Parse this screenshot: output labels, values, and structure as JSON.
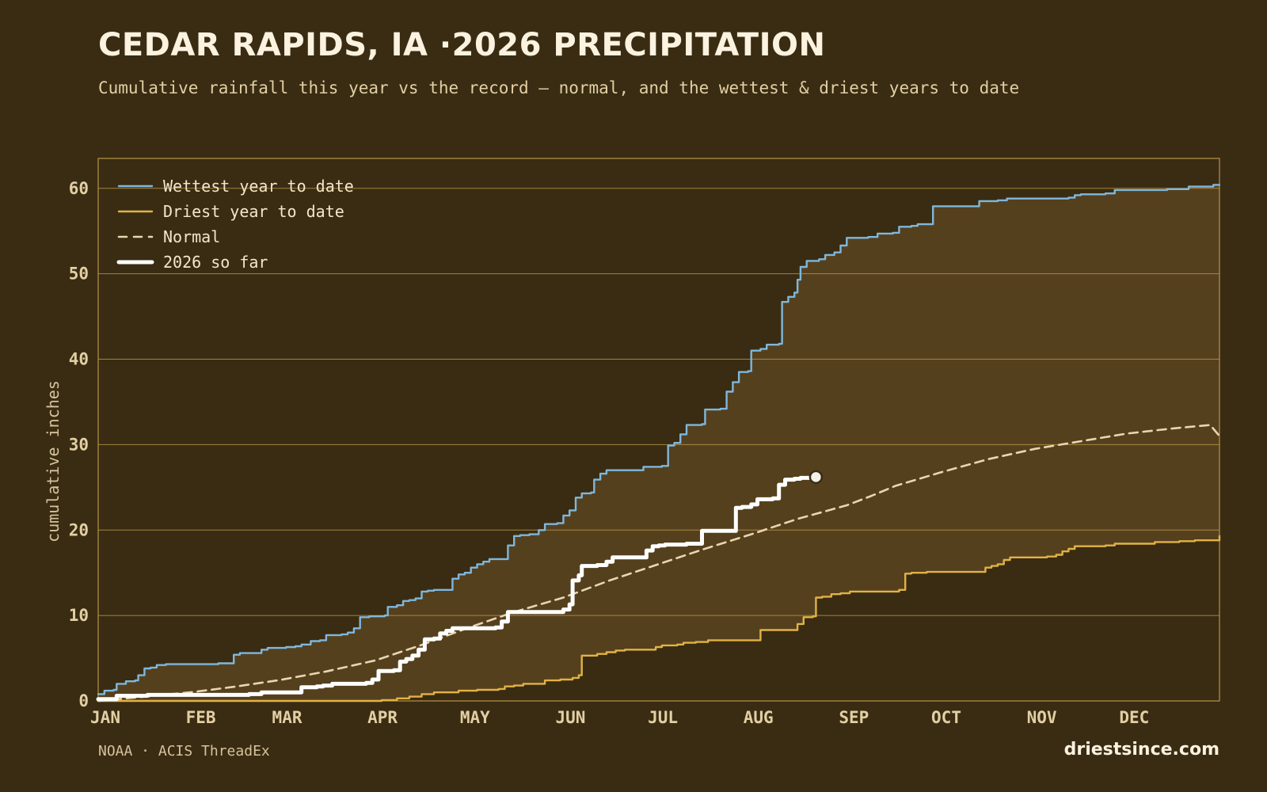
{
  "header": {
    "title": "CEDAR RAPIDS, IA ·2026 PRECIPITATION",
    "subtitle": "Cumulative rainfall this year vs the record — normal, and the wettest & driest years to date"
  },
  "footer": {
    "source": "NOAA · ACIS ThreadEx",
    "site": "driestsince.com"
  },
  "colors": {
    "background": "#392c13",
    "band_fill": "#55401e",
    "grid": "#b99345",
    "wettest": "#7fb7dc",
    "driest": "#e2b245",
    "normal": "#e8d6b0",
    "current": "#ffffff",
    "text": "#e3cfa3"
  },
  "chart_data": {
    "type": "line",
    "title": "CEDAR RAPIDS, IA ·2026 PRECIPITATION",
    "xlabel": "",
    "ylabel": "cumulative inches",
    "x_unit": "day of year",
    "xlim": [
      1,
      365
    ],
    "ylim": [
      0,
      63.5
    ],
    "yticks": [
      0,
      10,
      20,
      30,
      40,
      50,
      60
    ],
    "xticks": [
      {
        "label": "JAN",
        "day": 1
      },
      {
        "label": "FEB",
        "day": 32
      },
      {
        "label": "MAR",
        "day": 60
      },
      {
        "label": "APR",
        "day": 91
      },
      {
        "label": "MAY",
        "day": 121
      },
      {
        "label": "JUN",
        "day": 152
      },
      {
        "label": "JUL",
        "day": 182
      },
      {
        "label": "AUG",
        "day": 213
      },
      {
        "label": "SEP",
        "day": 244
      },
      {
        "label": "OCT",
        "day": 274
      },
      {
        "label": "NOV",
        "day": 305
      },
      {
        "label": "DEC",
        "day": 335
      }
    ],
    "grid": true,
    "legend_position": "top-left",
    "series": [
      {
        "name": "Wettest year to date",
        "key": "wettest",
        "style": "step",
        "points": [
          [
            1,
            0.8
          ],
          [
            3,
            1.2
          ],
          [
            6,
            1.3
          ],
          [
            7,
            2.0
          ],
          [
            10,
            2.3
          ],
          [
            13,
            2.4
          ],
          [
            14,
            3.0
          ],
          [
            16,
            3.8
          ],
          [
            18,
            3.9
          ],
          [
            20,
            4.2
          ],
          [
            23,
            4.3
          ],
          [
            38,
            4.3
          ],
          [
            40,
            4.4
          ],
          [
            43,
            4.4
          ],
          [
            45,
            5.4
          ],
          [
            47,
            5.6
          ],
          [
            51,
            5.6
          ],
          [
            53,
            5.6
          ],
          [
            54,
            6.0
          ],
          [
            56,
            6.2
          ],
          [
            60,
            6.2
          ],
          [
            62,
            6.3
          ],
          [
            65,
            6.4
          ],
          [
            67,
            6.6
          ],
          [
            70,
            7.0
          ],
          [
            73,
            7.1
          ],
          [
            75,
            7.7
          ],
          [
            80,
            7.8
          ],
          [
            82,
            8.0
          ],
          [
            84,
            8.5
          ],
          [
            86,
            9.8
          ],
          [
            89,
            9.9
          ],
          [
            94,
            10.0
          ],
          [
            95,
            11.0
          ],
          [
            98,
            11.2
          ],
          [
            100,
            11.7
          ],
          [
            102,
            11.8
          ],
          [
            104,
            12.0
          ],
          [
            106,
            12.8
          ],
          [
            108,
            12.9
          ],
          [
            110,
            13.0
          ],
          [
            115,
            13.0
          ],
          [
            116,
            14.3
          ],
          [
            118,
            14.8
          ],
          [
            120,
            15.0
          ],
          [
            122,
            15.6
          ],
          [
            124,
            16.0
          ],
          [
            126,
            16.3
          ],
          [
            128,
            16.6
          ],
          [
            133,
            16.6
          ],
          [
            134,
            18.2
          ],
          [
            136,
            19.3
          ],
          [
            138,
            19.4
          ],
          [
            141,
            19.5
          ],
          [
            144,
            20.0
          ],
          [
            146,
            20.7
          ],
          [
            150,
            20.8
          ],
          [
            152,
            21.7
          ],
          [
            154,
            22.3
          ],
          [
            156,
            23.8
          ],
          [
            158,
            24.3
          ],
          [
            161,
            24.4
          ],
          [
            162,
            25.9
          ],
          [
            164,
            26.6
          ],
          [
            166,
            27.0
          ],
          [
            176,
            27.0
          ],
          [
            178,
            27.4
          ],
          [
            184,
            27.5
          ],
          [
            186,
            29.9
          ],
          [
            188,
            30.2
          ],
          [
            190,
            31.2
          ],
          [
            192,
            32.3
          ],
          [
            197,
            32.4
          ],
          [
            198,
            34.1
          ],
          [
            203,
            34.2
          ],
          [
            205,
            36.2
          ],
          [
            207,
            37.3
          ],
          [
            209,
            38.5
          ],
          [
            212,
            38.6
          ],
          [
            213,
            41.0
          ],
          [
            216,
            41.2
          ],
          [
            218,
            41.7
          ],
          [
            222,
            41.8
          ],
          [
            223,
            46.7
          ],
          [
            225,
            47.3
          ],
          [
            227,
            47.8
          ],
          [
            228,
            49.3
          ],
          [
            229,
            50.8
          ],
          [
            231,
            51.5
          ],
          [
            235,
            51.7
          ],
          [
            237,
            52.2
          ],
          [
            240,
            52.5
          ],
          [
            242,
            53.3
          ],
          [
            244,
            54.2
          ],
          [
            251,
            54.3
          ],
          [
            254,
            54.7
          ],
          [
            259,
            54.8
          ],
          [
            261,
            55.5
          ],
          [
            265,
            55.6
          ],
          [
            267,
            55.8
          ],
          [
            271,
            55.8
          ],
          [
            272,
            57.9
          ],
          [
            285,
            57.9
          ],
          [
            287,
            58.5
          ],
          [
            293,
            58.6
          ],
          [
            296,
            58.8
          ],
          [
            310,
            58.8
          ],
          [
            316,
            58.9
          ],
          [
            318,
            59.2
          ],
          [
            320,
            59.3
          ],
          [
            328,
            59.4
          ],
          [
            331,
            59.8
          ],
          [
            340,
            59.8
          ],
          [
            345,
            59.8
          ],
          [
            348,
            59.9
          ],
          [
            355,
            60.2
          ],
          [
            363,
            60.4
          ],
          [
            365,
            60.4
          ]
        ]
      },
      {
        "name": "Driest year to date",
        "key": "driest",
        "style": "step",
        "points": [
          [
            1,
            0
          ],
          [
            90,
            0
          ],
          [
            93,
            0.1
          ],
          [
            98,
            0.3
          ],
          [
            102,
            0.5
          ],
          [
            106,
            0.8
          ],
          [
            110,
            1.0
          ],
          [
            113,
            1.0
          ],
          [
            118,
            1.2
          ],
          [
            124,
            1.3
          ],
          [
            131,
            1.4
          ],
          [
            133,
            1.7
          ],
          [
            136,
            1.8
          ],
          [
            139,
            2.0
          ],
          [
            144,
            2.0
          ],
          [
            146,
            2.4
          ],
          [
            151,
            2.5
          ],
          [
            155,
            2.7
          ],
          [
            157,
            3.0
          ],
          [
            158,
            5.3
          ],
          [
            161,
            5.3
          ],
          [
            163,
            5.5
          ],
          [
            166,
            5.7
          ],
          [
            169,
            5.9
          ],
          [
            172,
            6.0
          ],
          [
            178,
            6.0
          ],
          [
            182,
            6.3
          ],
          [
            184,
            6.5
          ],
          [
            189,
            6.6
          ],
          [
            191,
            6.8
          ],
          [
            195,
            6.9
          ],
          [
            199,
            7.1
          ],
          [
            205,
            7.1
          ],
          [
            214,
            7.1
          ],
          [
            216,
            8.3
          ],
          [
            221,
            8.3
          ],
          [
            227,
            8.3
          ],
          [
            228,
            9.0
          ],
          [
            230,
            9.8
          ],
          [
            233,
            9.9
          ],
          [
            234,
            12.1
          ],
          [
            236,
            12.2
          ],
          [
            239,
            12.5
          ],
          [
            242,
            12.6
          ],
          [
            245,
            12.8
          ],
          [
            248,
            12.8
          ],
          [
            256,
            12.8
          ],
          [
            261,
            13.0
          ],
          [
            263,
            14.9
          ],
          [
            265,
            15.0
          ],
          [
            270,
            15.1
          ],
          [
            275,
            15.1
          ],
          [
            287,
            15.1
          ],
          [
            289,
            15.6
          ],
          [
            291,
            15.8
          ],
          [
            293,
            16.0
          ],
          [
            295,
            16.5
          ],
          [
            297,
            16.8
          ],
          [
            303,
            16.8
          ],
          [
            309,
            16.9
          ],
          [
            312,
            17.1
          ],
          [
            314,
            17.5
          ],
          [
            316,
            17.8
          ],
          [
            318,
            18.1
          ],
          [
            328,
            18.2
          ],
          [
            331,
            18.4
          ],
          [
            337,
            18.4
          ],
          [
            341,
            18.4
          ],
          [
            344,
            18.6
          ],
          [
            352,
            18.7
          ],
          [
            357,
            18.8
          ],
          [
            364,
            18.8
          ],
          [
            365,
            19.3
          ]
        ]
      },
      {
        "name": "Normal",
        "key": "normal",
        "style": "dashed",
        "points": [
          [
            1,
            0
          ],
          [
            15,
            0.45
          ],
          [
            32,
            1.05
          ],
          [
            45,
            1.65
          ],
          [
            60,
            2.45
          ],
          [
            75,
            3.45
          ],
          [
            91,
            4.75
          ],
          [
            106,
            6.55
          ],
          [
            121,
            8.55
          ],
          [
            136,
            10.4
          ],
          [
            152,
            12.1
          ],
          [
            167,
            14.1
          ],
          [
            182,
            15.9
          ],
          [
            197,
            17.7
          ],
          [
            213,
            19.5
          ],
          [
            228,
            21.3
          ],
          [
            244,
            22.9
          ],
          [
            252,
            24.0
          ],
          [
            260,
            25.2
          ],
          [
            274,
            26.7
          ],
          [
            290,
            28.3
          ],
          [
            305,
            29.5
          ],
          [
            320,
            30.4
          ],
          [
            335,
            31.3
          ],
          [
            350,
            31.9
          ],
          [
            362,
            32.3
          ],
          [
            365,
            31.0
          ]
        ]
      },
      {
        "name": "2026 so far",
        "key": "current",
        "style": "step-bold",
        "points": [
          [
            1,
            0.2
          ],
          [
            5,
            0.2
          ],
          [
            7,
            0.6
          ],
          [
            12,
            0.6
          ],
          [
            14,
            0.6
          ],
          [
            17,
            0.7
          ],
          [
            48,
            0.7
          ],
          [
            50,
            0.8
          ],
          [
            54,
            1.0
          ],
          [
            65,
            1.0
          ],
          [
            67,
            1.6
          ],
          [
            72,
            1.7
          ],
          [
            74,
            1.8
          ],
          [
            77,
            2.0
          ],
          [
            88,
            2.1
          ],
          [
            90,
            2.5
          ],
          [
            92,
            3.5
          ],
          [
            97,
            3.6
          ],
          [
            99,
            4.6
          ],
          [
            101,
            4.9
          ],
          [
            103,
            5.3
          ],
          [
            105,
            6.0
          ],
          [
            107,
            7.2
          ],
          [
            110,
            7.3
          ],
          [
            112,
            7.9
          ],
          [
            114,
            8.2
          ],
          [
            116,
            8.5
          ],
          [
            124,
            8.5
          ],
          [
            130,
            8.6
          ],
          [
            132,
            9.3
          ],
          [
            134,
            10.4
          ],
          [
            139,
            10.4
          ],
          [
            143,
            10.4
          ],
          [
            150,
            10.4
          ],
          [
            152,
            10.7
          ],
          [
            154,
            11.3
          ],
          [
            155,
            14.1
          ],
          [
            157,
            14.7
          ],
          [
            158,
            15.8
          ],
          [
            163,
            15.9
          ],
          [
            166,
            16.3
          ],
          [
            168,
            16.8
          ],
          [
            177,
            16.8
          ],
          [
            179,
            17.6
          ],
          [
            181,
            18.1
          ],
          [
            183,
            18.2
          ],
          [
            185,
            18.3
          ],
          [
            192,
            18.4
          ],
          [
            196,
            18.4
          ],
          [
            197,
            19.9
          ],
          [
            203,
            19.9
          ],
          [
            206,
            19.9
          ],
          [
            208,
            22.6
          ],
          [
            210,
            22.7
          ],
          [
            213,
            23.0
          ],
          [
            215,
            23.6
          ],
          [
            220,
            23.7
          ],
          [
            222,
            25.3
          ],
          [
            224,
            25.9
          ],
          [
            227,
            26.0
          ],
          [
            229,
            26.1
          ],
          [
            234,
            26.2
          ]
        ]
      }
    ]
  }
}
